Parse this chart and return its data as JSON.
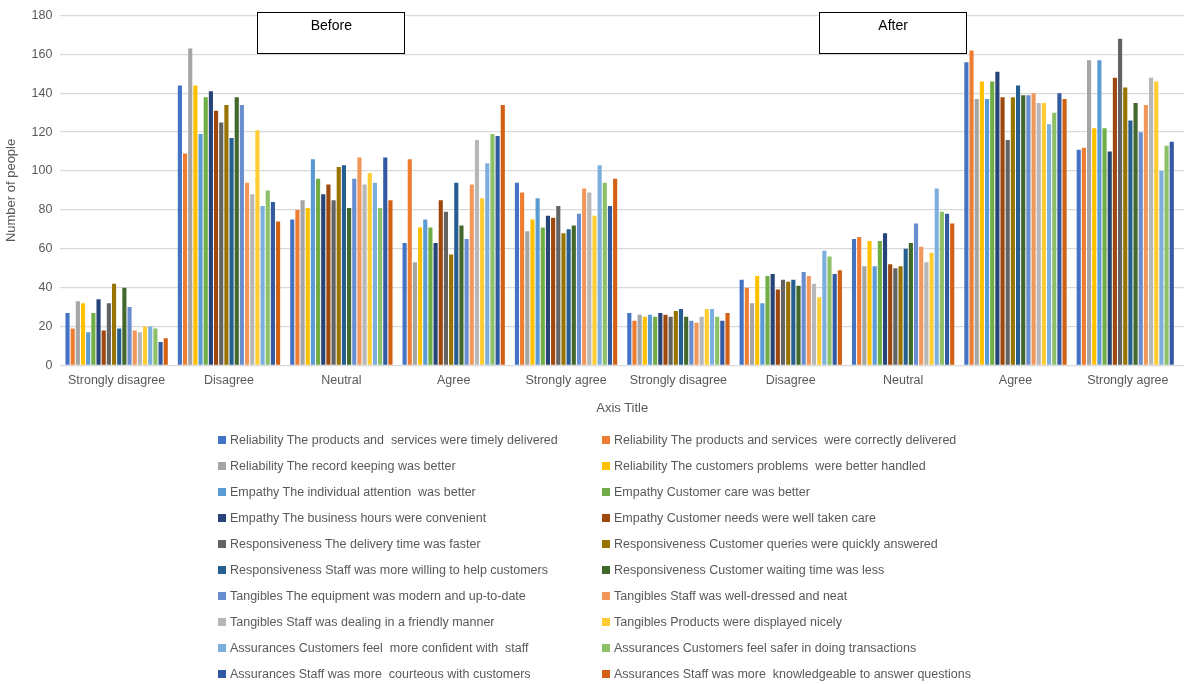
{
  "chart_data": {
    "type": "bar",
    "xlabel": "Axis Title",
    "ylabel": "Number of people",
    "annotations": [
      "Before",
      "After"
    ],
    "categories": [
      "Strongly disagree",
      "Disagree",
      "Neutral",
      "Agree",
      "Strongly agree",
      "Strongly disagree",
      "Disagree",
      "Neutral",
      "Agree",
      "Strongly agree"
    ],
    "ylim": [
      0,
      180
    ],
    "yticks": [
      0,
      20,
      40,
      60,
      80,
      100,
      120,
      140,
      160,
      180
    ],
    "grid": "y",
    "legend": "bottom",
    "series": [
      {
        "name": "Reliability The products and  services were timely delivered",
        "color": "#4472c4",
        "values": [
          27,
          144,
          75,
          63,
          94,
          27,
          44,
          65,
          156,
          111
        ]
      },
      {
        "name": "Reliability The products and services  were correctly delivered",
        "color": "#ed7d31",
        "values": [
          19,
          109,
          80,
          106,
          89,
          23,
          40,
          66,
          162,
          112
        ]
      },
      {
        "name": "Reliability The record keeping was better",
        "color": "#a5a5a5",
        "values": [
          33,
          163,
          85,
          53,
          69,
          26,
          32,
          51,
          137,
          157
        ]
      },
      {
        "name": "Reliability The customers problems  were better handled",
        "color": "#ffc000",
        "values": [
          32,
          144,
          81,
          71,
          75,
          25,
          46,
          64,
          146,
          122
        ]
      },
      {
        "name": "Empathy The individual attention  was better",
        "color": "#5b9bd5",
        "values": [
          17,
          119,
          106,
          75,
          86,
          26,
          32,
          51,
          137,
          157
        ]
      },
      {
        "name": "Empathy Customer care was better",
        "color": "#70ad47",
        "values": [
          27,
          138,
          96,
          71,
          71,
          25,
          46,
          64,
          146,
          122
        ]
      },
      {
        "name": "Empathy The business hours were convenient",
        "color": "#264478",
        "values": [
          34,
          141,
          88,
          63,
          77,
          27,
          47,
          68,
          151,
          110
        ]
      },
      {
        "name": "Empathy Customer needs were well taken care",
        "color": "#9e480e",
        "values": [
          18,
          131,
          93,
          85,
          76,
          26,
          39,
          52,
          138,
          148
        ]
      },
      {
        "name": "Responsiveness The delivery time was faster",
        "color": "#636363",
        "values": [
          32,
          125,
          85,
          79,
          82,
          25,
          44,
          50,
          116,
          168
        ]
      },
      {
        "name": "Responsiveness Customer queries were quickly answered",
        "color": "#997300",
        "values": [
          42,
          134,
          102,
          57,
          68,
          28,
          43,
          51,
          138,
          143
        ]
      },
      {
        "name": "Responsiveness Staff was more willing to help customers",
        "color": "#255e91",
        "values": [
          19,
          117,
          103,
          94,
          70,
          29,
          44,
          60,
          144,
          126
        ]
      },
      {
        "name": "Responsiveness Customer waiting time was less",
        "color": "#43682b",
        "values": [
          40,
          138,
          81,
          72,
          72,
          25,
          41,
          63,
          139,
          135
        ]
      },
      {
        "name": "Tangibles The equipment was modern and up-to-date",
        "color": "#698ed0",
        "values": [
          30,
          134,
          96,
          65,
          78,
          23,
          48,
          73,
          139,
          120
        ]
      },
      {
        "name": "Tangibles Staff was well-dressed and neat",
        "color": "#f1975a",
        "values": [
          18,
          94,
          107,
          93,
          91,
          22,
          46,
          61,
          140,
          134
        ]
      },
      {
        "name": "Tangibles Staff was dealing in a friendly manner",
        "color": "#b7b7b7",
        "values": [
          17,
          88,
          93,
          116,
          89,
          25,
          42,
          53,
          135,
          148
        ]
      },
      {
        "name": "Tangibles Products were displayed nicely",
        "color": "#ffcd33",
        "values": [
          20,
          121,
          99,
          86,
          77,
          29,
          35,
          58,
          135,
          146
        ]
      },
      {
        "name": "Assurances Customers feel  more confident with  staff",
        "color": "#7cafdd",
        "values": [
          20,
          82,
          94,
          104,
          103,
          29,
          59,
          91,
          124,
          100
        ]
      },
      {
        "name": "Assurances Customers feel safer in doing transactions",
        "color": "#8cc168",
        "values": [
          19,
          90,
          81,
          119,
          94,
          25,
          56,
          79,
          130,
          113
        ]
      },
      {
        "name": "Assurances Staff was more  courteous with customers",
        "color": "#335aa1",
        "values": [
          12,
          84,
          107,
          118,
          82,
          23,
          47,
          78,
          140,
          115
        ]
      },
      {
        "name": "Assurances Staff was more  knowledgeable to answer questions",
        "color": "#d26012",
        "values": [
          14,
          74,
          85,
          134,
          96,
          27,
          49,
          73,
          137,
          null
        ]
      }
    ]
  }
}
